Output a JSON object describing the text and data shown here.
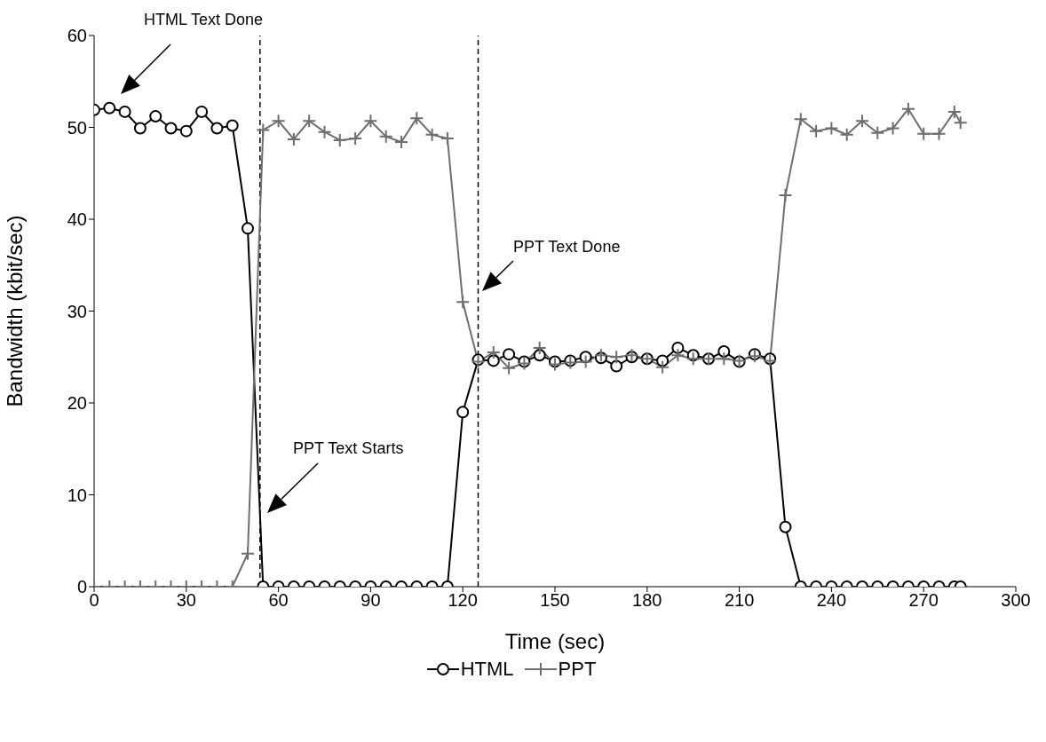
{
  "chart_data": {
    "type": "line",
    "xlabel": "Time (sec)",
    "ylabel": "Bandwidth (kbit/sec)",
    "xlim": [
      0,
      300
    ],
    "xticks": [
      0,
      30,
      60,
      90,
      120,
      150,
      180,
      210,
      240,
      270,
      300
    ],
    "ylim": [
      0,
      60
    ],
    "yticks": [
      0,
      10,
      20,
      30,
      40,
      50,
      60
    ],
    "legend": "bottom",
    "ref_lines": [
      {
        "axis": "x",
        "value": 54,
        "color": "#000000",
        "line_style": "dashed"
      },
      {
        "axis": "x",
        "value": 125,
        "color": "#000000",
        "line_style": "dashed"
      }
    ],
    "annotations": [
      "HTML Text Done",
      "PPT Text Starts",
      "PPT Text Done"
    ],
    "series": [
      {
        "name": "HTML",
        "color": "#000000",
        "marker": "circle",
        "x": [
          0,
          5,
          10,
          15,
          20,
          25,
          30,
          35,
          40,
          45,
          50,
          55,
          60,
          65,
          70,
          75,
          80,
          85,
          90,
          95,
          100,
          105,
          110,
          115,
          120,
          125,
          130,
          135,
          140,
          145,
          150,
          155,
          160,
          165,
          170,
          175,
          180,
          185,
          190,
          195,
          200,
          205,
          210,
          215,
          220,
          225,
          230,
          235,
          240,
          245,
          250,
          255,
          260,
          265,
          270,
          275,
          280,
          282
        ],
        "values": [
          51.9,
          52.1,
          51.7,
          49.9,
          51.2,
          49.9,
          49.6,
          51.7,
          49.9,
          50.2,
          39.0,
          0,
          0,
          0,
          0,
          0,
          0,
          0,
          0,
          0,
          0,
          0,
          0,
          0,
          19,
          24.7,
          24.6,
          25.3,
          24.5,
          25.2,
          24.5,
          24.6,
          25,
          24.9,
          24,
          25,
          24.8,
          24.6,
          26,
          25.2,
          24.8,
          25.6,
          24.5,
          25.3,
          24.8,
          6.5,
          0,
          0,
          0,
          0,
          0,
          0,
          0,
          0,
          0,
          0,
          0,
          0
        ]
      },
      {
        "name": "PPT",
        "color": "#6e6e6e",
        "marker": "cross",
        "x": [
          0,
          5,
          10,
          15,
          20,
          25,
          30,
          35,
          40,
          45,
          50,
          55,
          60,
          65,
          70,
          75,
          80,
          85,
          90,
          95,
          100,
          105,
          110,
          115,
          120,
          125,
          130,
          135,
          140,
          145,
          150,
          155,
          160,
          165,
          170,
          175,
          180,
          185,
          190,
          195,
          200,
          205,
          210,
          215,
          220,
          225,
          230,
          235,
          240,
          245,
          250,
          255,
          260,
          265,
          270,
          275,
          280,
          282
        ],
        "values": [
          0,
          0,
          0,
          0,
          0,
          0,
          0,
          0,
          0,
          0,
          3.6,
          49.7,
          50.7,
          48.7,
          50.7,
          49.5,
          48.6,
          48.8,
          50.7,
          49.0,
          48.4,
          51.0,
          49.2,
          48.8,
          31,
          24.5,
          25.5,
          23.8,
          24.3,
          26,
          24.2,
          24.4,
          24.5,
          25.2,
          25,
          25.2,
          24.8,
          23.9,
          25.2,
          24.8,
          24.8,
          24.8,
          24.6,
          25.1,
          24.6,
          42.6,
          50.9,
          49.6,
          49.9,
          49.2,
          50.7,
          49.4,
          49.9,
          52,
          49.3,
          49.3,
          51.7,
          50.5
        ]
      }
    ]
  }
}
